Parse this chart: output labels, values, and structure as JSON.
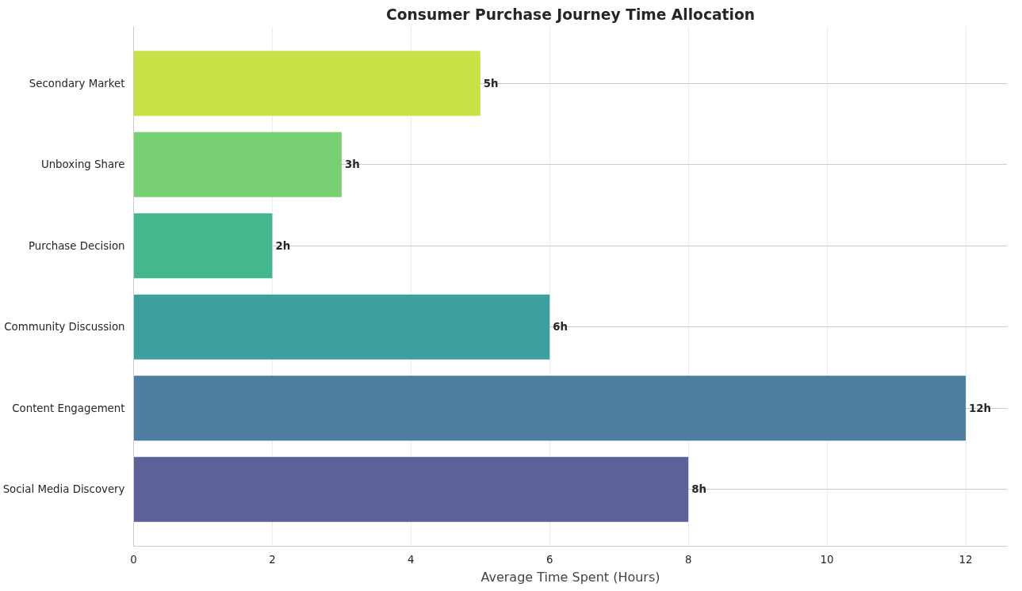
{
  "chart_data": {
    "type": "bar",
    "orientation": "horizontal",
    "title": "Consumer Purchase Journey Time Allocation",
    "xlabel": "Average Time Spent (Hours)",
    "categories": [
      "Secondary Market",
      "Unboxing Share",
      "Purchase Decision",
      "Community Discussion",
      "Content Engagement",
      "Social Media Discovery"
    ],
    "values": [
      5,
      3,
      2,
      6,
      12,
      8
    ],
    "colors": [
      "#c9e145",
      "#77d172",
      "#45b78c",
      "#3ea09e",
      "#4f7fa0",
      "#5e6099"
    ],
    "value_labels": [
      "5h",
      "3h",
      "2h",
      "6h",
      "12h",
      "8h"
    ],
    "xlim": [
      0,
      12.6
    ],
    "xticks": [
      0,
      2,
      4,
      6,
      8,
      10,
      12
    ],
    "grid": true
  }
}
